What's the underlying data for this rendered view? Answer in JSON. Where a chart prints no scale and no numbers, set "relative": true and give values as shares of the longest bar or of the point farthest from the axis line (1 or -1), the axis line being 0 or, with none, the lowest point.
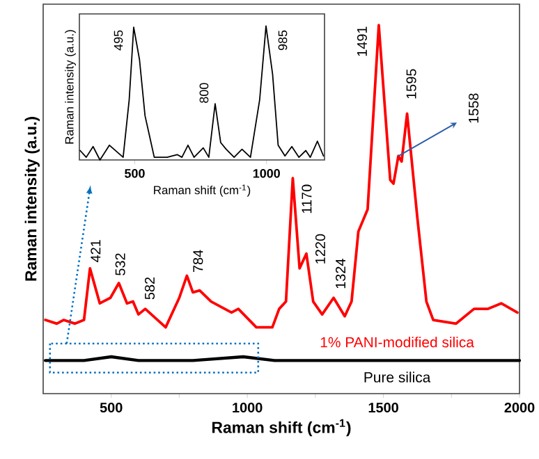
{
  "chart_data": [
    {
      "type": "line",
      "xlabel": "Raman shift (cm$^{-1}$)",
      "ylabel": "Raman intensity (a.u.)",
      "relative": true,
      "xlim": [
        250,
        2000
      ],
      "xticks": [
        500,
        {
          "value": 750,
          "label": null
        },
        1000,
        {
          "value": 1250,
          "label": null
        },
        1500,
        {
          "value": 1750,
          "label": null
        },
        2000
      ],
      "series": [
        {
          "name": "1% PANI-modified silica",
          "color": "#ff0000",
          "x": [
            258,
            300,
            325,
            367,
            400,
            422,
            458,
            497,
            528,
            558,
            580,
            600,
            625,
            700,
            750,
            778,
            800,
            825,
            867,
            917,
            942,
            967,
            1033,
            1092,
            1117,
            1142,
            1167,
            1192,
            1217,
            1242,
            1275,
            1317,
            1358,
            1383,
            1408,
            1442,
            1483,
            1525,
            1537,
            1555,
            1567,
            1587,
            1625,
            1658,
            1683,
            1767,
            1833,
            1883,
            1933,
            1992
          ],
          "values": [
            0.2,
            0.19,
            0.2,
            0.19,
            0.2,
            0.34,
            0.245,
            0.26,
            0.3,
            0.245,
            0.25,
            0.215,
            0.23,
            0.18,
            0.26,
            0.32,
            0.275,
            0.28,
            0.25,
            0.23,
            0.22,
            0.23,
            0.18,
            0.18,
            0.23,
            0.25,
            0.585,
            0.34,
            0.38,
            0.25,
            0.215,
            0.26,
            0.21,
            0.25,
            0.44,
            0.5,
            1.0,
            0.58,
            0.57,
            0.645,
            0.63,
            0.76,
            0.475,
            0.25,
            0.2,
            0.19,
            0.23,
            0.23,
            0.245,
            0.22
          ]
        },
        {
          "name": "Pure silica",
          "color": "#000000",
          "x": [
            258,
            400,
            500,
            600,
            800,
            985,
            1100,
            1500,
            2000
          ],
          "values": [
            0.09,
            0.09,
            0.1,
            0.09,
            0.09,
            0.1,
            0.09,
            0.09,
            0.09
          ]
        }
      ],
      "annotations": [
        {
          "text": "421",
          "x": 422,
          "y": 0.34
        },
        {
          "text": "532",
          "x": 528,
          "y": 0.3
        },
        {
          "text": "582",
          "x": 580,
          "y": 0.25
        },
        {
          "text": "784",
          "x": 778,
          "y": 0.32
        },
        {
          "text": "1170",
          "x": 1167,
          "y": 0.585
        },
        {
          "text": "1220",
          "x": 1217,
          "y": 0.38
        },
        {
          "text": "1324",
          "x": 1317,
          "y": 0.26
        },
        {
          "text": "1491",
          "x": 1483,
          "y": 1.0
        },
        {
          "text": "1595",
          "x": 1587,
          "y": 0.76
        },
        {
          "text": "1558",
          "x": 1555,
          "y": 0.645
        }
      ]
    },
    {
      "type": "line",
      "xlabel": "Raman shift (cm$^{-1}$)",
      "ylabel": "Raman intensity (a.u.)",
      "relative": true,
      "xlim": [
        290,
        1220
      ],
      "xticks": [
        500,
        1000
      ],
      "series": [
        {
          "color": "#000000",
          "x": [
            293,
            316,
            342,
            368,
            404,
            456,
            479,
            496,
            518,
            539,
            556,
            574,
            623,
            661,
            679,
            702,
            725,
            760,
            781,
            805,
            826,
            847,
            877,
            907,
            939,
            974,
            998,
            1023,
            1044,
            1070,
            1096,
            1123,
            1149,
            1166,
            1193,
            1216
          ],
          "values": [
            0.07,
            0.02,
            0.1,
            0.0,
            0.11,
            0.02,
            0.45,
            0.99,
            0.75,
            0.33,
            0.18,
            0.02,
            0.02,
            0.04,
            0.02,
            0.11,
            0.02,
            0.09,
            0.02,
            0.42,
            0.13,
            0.08,
            0.02,
            0.08,
            0.02,
            0.45,
            1.0,
            0.64,
            0.11,
            0.03,
            0.1,
            0.02,
            0.07,
            0.02,
            0.14,
            0.03
          ]
        }
      ],
      "annotations": [
        {
          "text": "495",
          "x": 496,
          "y": 0.99
        },
        {
          "text": "800",
          "x": 805,
          "y": 0.42
        },
        {
          "text": "985",
          "x": 998,
          "y": 1.0
        }
      ]
    }
  ]
}
